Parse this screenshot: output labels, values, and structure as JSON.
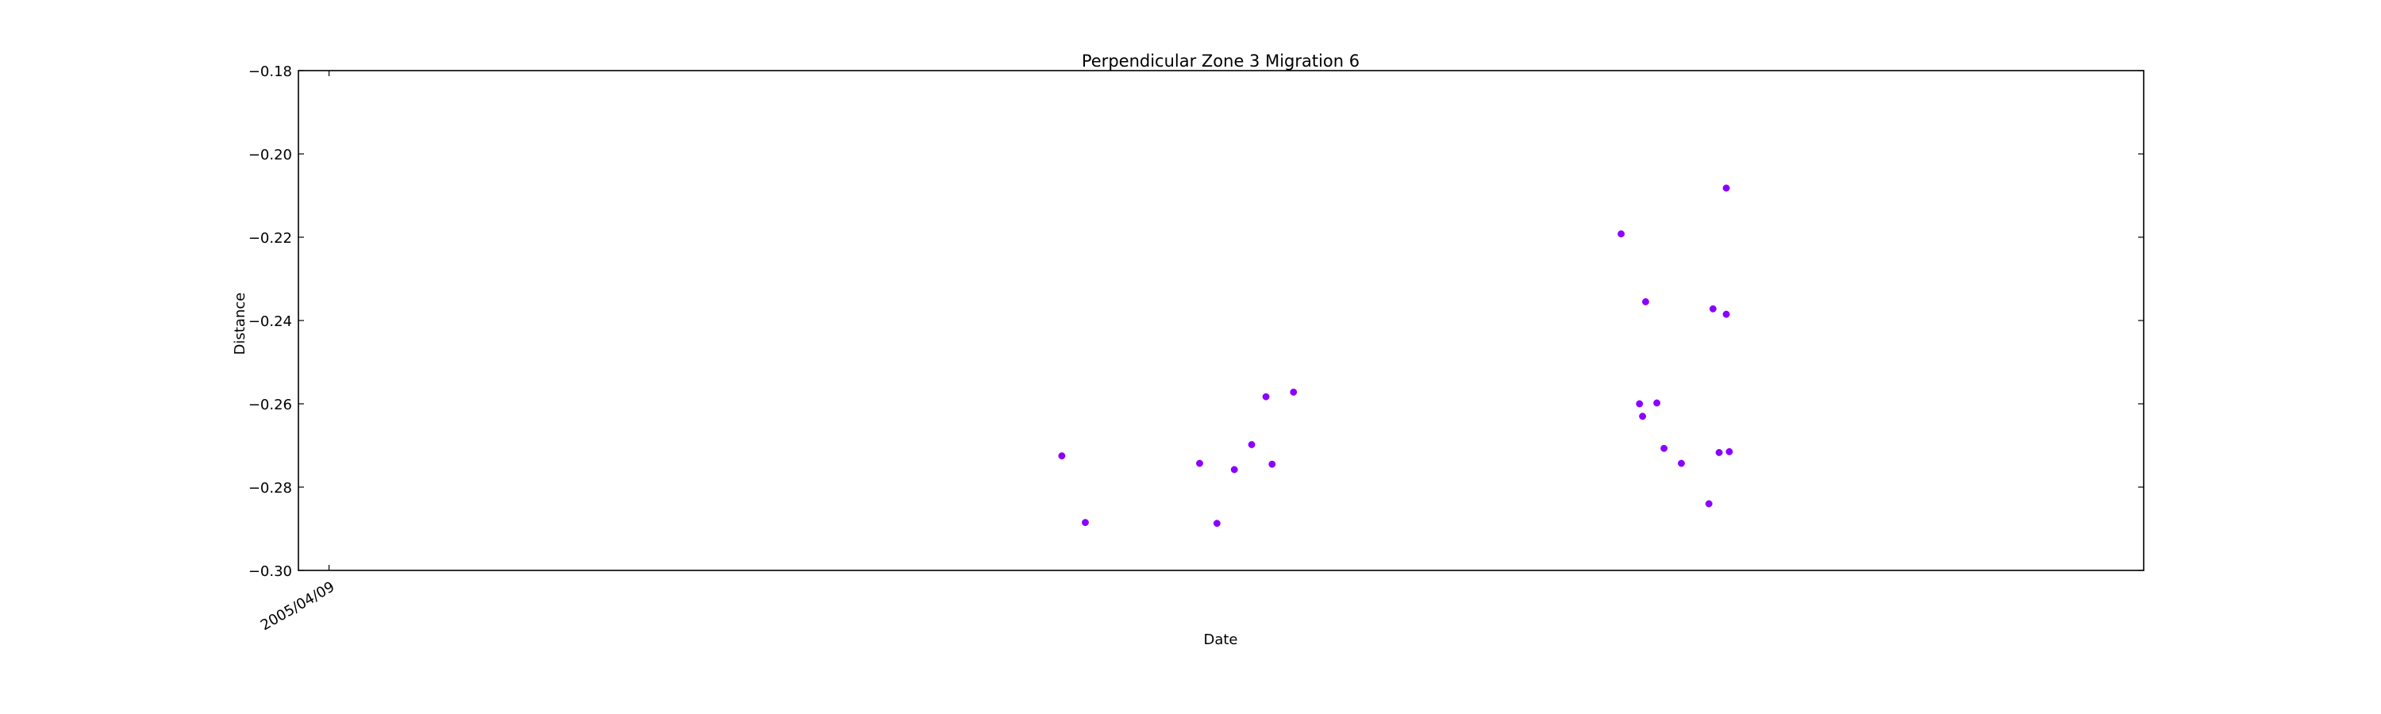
{
  "chart_data": {
    "type": "scatter",
    "title": "Perpendicular Zone 3 Migration 6",
    "xlabel": "Date",
    "ylabel": "Distance",
    "ylim": [
      -0.3,
      -0.18
    ],
    "yticks": [
      -0.18,
      -0.2,
      -0.22,
      -0.24,
      -0.26,
      -0.28,
      -0.3
    ],
    "ytick_labels": [
      "−0.18",
      "−0.20",
      "−0.22",
      "−0.24",
      "−0.26",
      "−0.28",
      "−0.30"
    ],
    "xlim": [
      "2005/03/10",
      "2010/02/20"
    ],
    "xticks": [
      "2005/04/09"
    ],
    "xtick_labels": [
      "2005/04/09"
    ],
    "grid": false,
    "marker_color": "#8B00FF",
    "series": [
      {
        "values": [
          {
            "x": "2007/03/28",
            "y": -0.2725
          },
          {
            "x": "2007/04/20",
            "y": -0.2885
          },
          {
            "x": "2007/08/10",
            "y": -0.2743
          },
          {
            "x": "2007/08/27",
            "y": -0.2887
          },
          {
            "x": "2007/09/13",
            "y": -0.2758
          },
          {
            "x": "2007/09/30",
            "y": -0.2698
          },
          {
            "x": "2007/10/14",
            "y": -0.2583
          },
          {
            "x": "2007/10/20",
            "y": -0.2745
          },
          {
            "x": "2007/11/10",
            "y": -0.2572
          },
          {
            "x": "2008/09/26",
            "y": -0.2192
          },
          {
            "x": "2008/10/14",
            "y": -0.26
          },
          {
            "x": "2008/10/17",
            "y": -0.263
          },
          {
            "x": "2008/10/20",
            "y": -0.2355
          },
          {
            "x": "2008/10/31",
            "y": -0.2598
          },
          {
            "x": "2008/11/07",
            "y": -0.2707
          },
          {
            "x": "2008/11/24",
            "y": -0.2743
          },
          {
            "x": "2008/12/21",
            "y": -0.284
          },
          {
            "x": "2008/12/25",
            "y": -0.2372
          },
          {
            "x": "2008/12/31",
            "y": -0.2717
          },
          {
            "x": "2009/01/07",
            "y": -0.2082
          },
          {
            "x": "2009/01/07",
            "y": -0.2385
          },
          {
            "x": "2009/01/10",
            "y": -0.2715
          }
        ]
      }
    ]
  }
}
